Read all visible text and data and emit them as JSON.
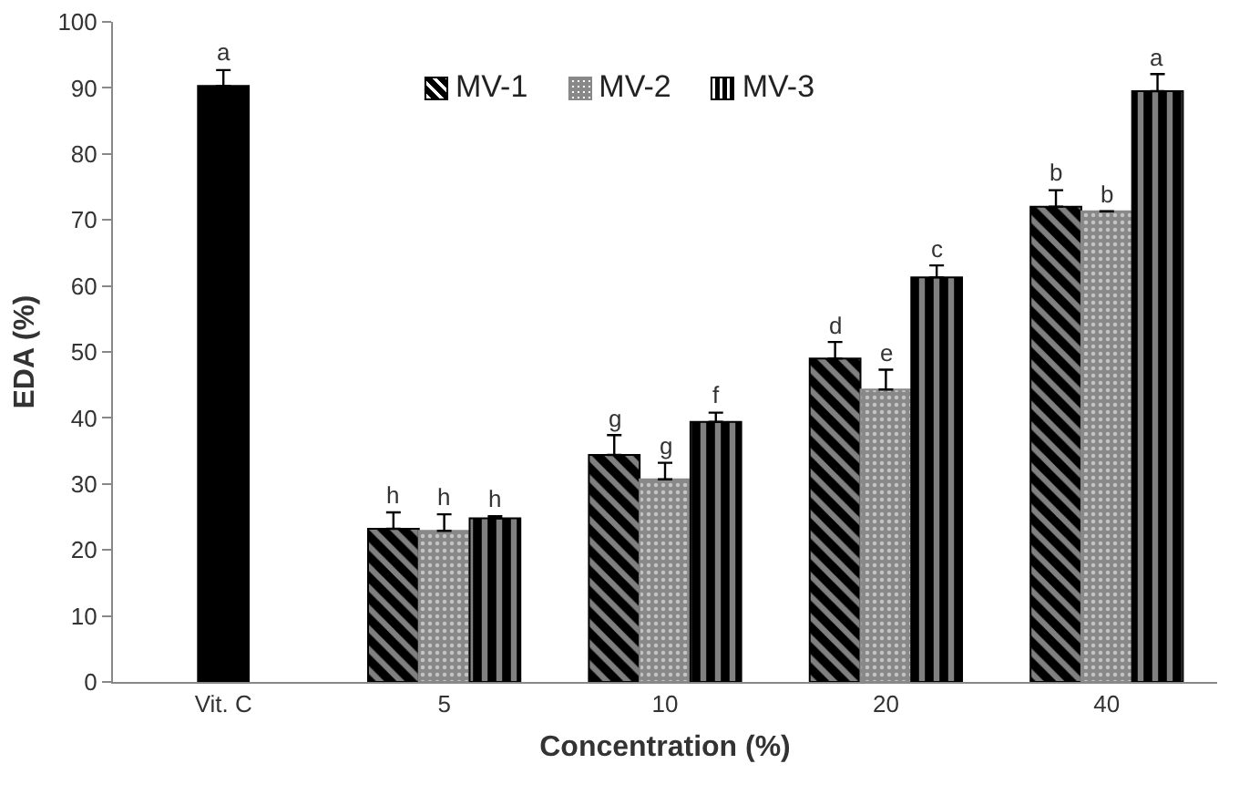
{
  "chart_data": {
    "type": "bar",
    "xlabel": "Concentration (%)",
    "ylabel": "EDA (%)",
    "categories": [
      "Vit. C",
      "5",
      "10",
      "20",
      "40"
    ],
    "series": [
      {
        "color": "#000000",
        "values": [
          90.3,
          null,
          null,
          null,
          null
        ],
        "errors": [
          [
            90.3,
            92.7
          ],
          null,
          null,
          null,
          null
        ],
        "value_labels": [
          "a",
          null,
          null,
          null,
          null
        ]
      },
      {
        "name": "MV-1",
        "color": "#000000",
        "values": [
          null,
          23.2,
          34.4,
          49.0,
          72.0
        ],
        "errors": [
          null,
          [
            23.2,
            25.7
          ],
          [
            34.4,
            37.4
          ],
          [
            49.0,
            51.5
          ],
          [
            72.0,
            74.5
          ]
        ],
        "value_labels": [
          null,
          "h",
          "g",
          "d",
          "b"
        ]
      },
      {
        "name": "MV-2",
        "color": "#888888",
        "values": [
          null,
          22.9,
          30.7,
          44.3,
          71.3
        ],
        "errors": [
          null,
          [
            22.9,
            25.4
          ],
          [
            30.7,
            33.2
          ],
          [
            44.3,
            47.3
          ],
          null
        ],
        "value_labels": [
          null,
          "h",
          "g",
          "e",
          "b"
        ]
      },
      {
        "name": "MV-3",
        "color": "#000000",
        "values": [
          null,
          24.8,
          39.4,
          61.3,
          89.5
        ],
        "errors": [
          null,
          [
            24.8,
            25.1
          ],
          [
            39.4,
            40.8
          ],
          [
            61.3,
            63.1
          ],
          [
            89.5,
            92.1
          ]
        ],
        "value_labels": [
          null,
          "h",
          "f",
          "c",
          "a"
        ]
      }
    ],
    "ylim": [
      0,
      100
    ],
    "yticks": [
      0,
      10,
      20,
      30,
      40,
      50,
      60,
      70,
      80,
      90,
      100
    ],
    "grid": false,
    "legend": "top"
  }
}
